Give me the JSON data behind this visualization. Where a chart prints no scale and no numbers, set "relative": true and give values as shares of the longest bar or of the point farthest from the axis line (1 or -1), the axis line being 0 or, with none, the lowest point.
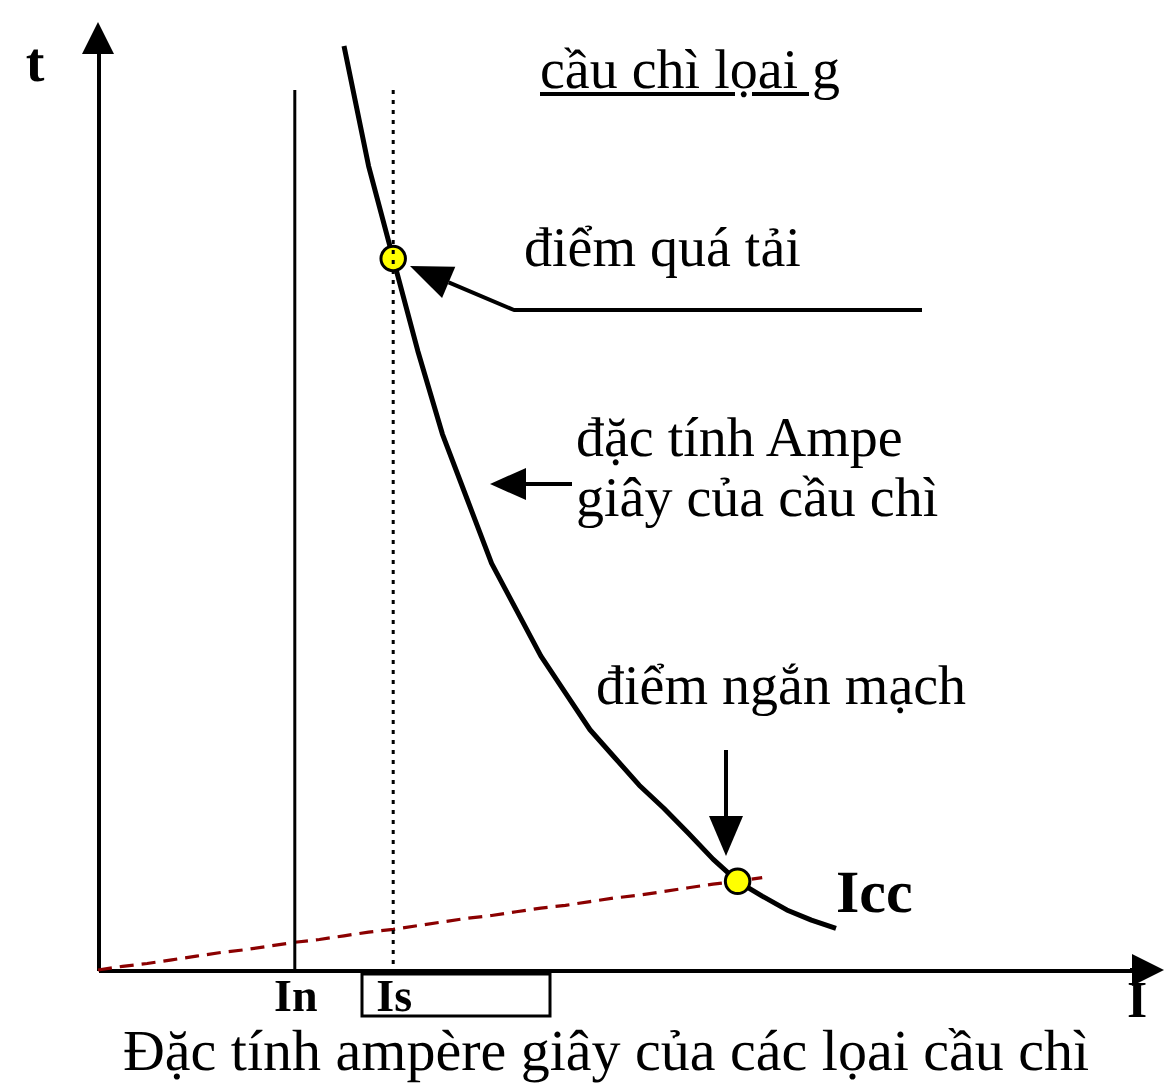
{
  "chart_data": {
    "type": "line",
    "title": "cầu chì lọai g",
    "xlabel": "I",
    "ylabel": "t",
    "relative": true,
    "categories": [
      null,
      null,
      null,
      null,
      null,
      null,
      null,
      null,
      "In",
      null,
      null,
      null,
      "Is",
      null,
      null,
      null,
      null,
      null,
      null,
      null,
      null,
      null,
      null,
      null,
      null,
      null,
      null,
      null,
      null,
      null,
      null,
      null,
      null,
      null,
      null,
      null,
      null,
      null,
      null,
      null,
      null,
      null,
      null
    ],
    "series": [
      {
        "color": "#000000",
        "values": [
          null,
          null,
          null,
          null,
          null,
          null,
          null,
          null,
          null,
          null,
          1,
          0.87,
          0.77,
          0.67,
          0.58,
          0.51,
          0.44,
          0.39,
          0.34,
          0.3,
          0.26,
          0.23,
          0.2,
          0.175,
          0.148,
          0.12,
          0.096,
          0.08,
          0.065,
          0.054,
          0.045,
          null,
          null,
          null,
          null,
          null,
          null,
          null,
          null,
          null,
          null,
          null,
          null
        ]
      },
      {
        "color": "#8b0000",
        "line_style": "dashed",
        "values": [
          0,
          0.004,
          0.007,
          0.011,
          0.015,
          0.019,
          0.022,
          0.026,
          0.03,
          0.033,
          0.037,
          0.041,
          0.044,
          0.048,
          0.052,
          0.056,
          0.059,
          0.063,
          0.067,
          0.07,
          0.074,
          0.078,
          0.081,
          0.085,
          0.089,
          0.093,
          0.096,
          0.1,
          null,
          null,
          null,
          null,
          null,
          null,
          null,
          null,
          null,
          null,
          null,
          null,
          null,
          null,
          null
        ]
      },
      {
        "type": "scatter",
        "color": "#ffff00",
        "marker": "circle",
        "values": [
          null,
          null,
          null,
          null,
          null,
          null,
          null,
          null,
          null,
          null,
          null,
          null,
          0.77,
          null,
          null,
          null,
          null,
          null,
          null,
          null,
          null,
          null,
          null,
          null,
          null,
          null,
          0.096,
          null,
          null,
          null,
          null,
          null,
          null,
          null,
          null,
          null,
          null,
          null,
          null,
          null,
          null,
          null,
          null
        ]
      }
    ],
    "ref_lines": [
      {
        "axis": "x",
        "value": "In",
        "color": "#000000",
        "line_style": "solid"
      },
      {
        "axis": "x",
        "value": "Is",
        "color": "#000000",
        "line_style": "dotted"
      }
    ],
    "annotations": [
      "điểm quá tải",
      "đặc tính Ampe giây của cầu chì",
      "điểm ngắn mạch",
      "Icc",
      "Đặc tính ampère giây của các lọai cầu chì"
    ]
  }
}
